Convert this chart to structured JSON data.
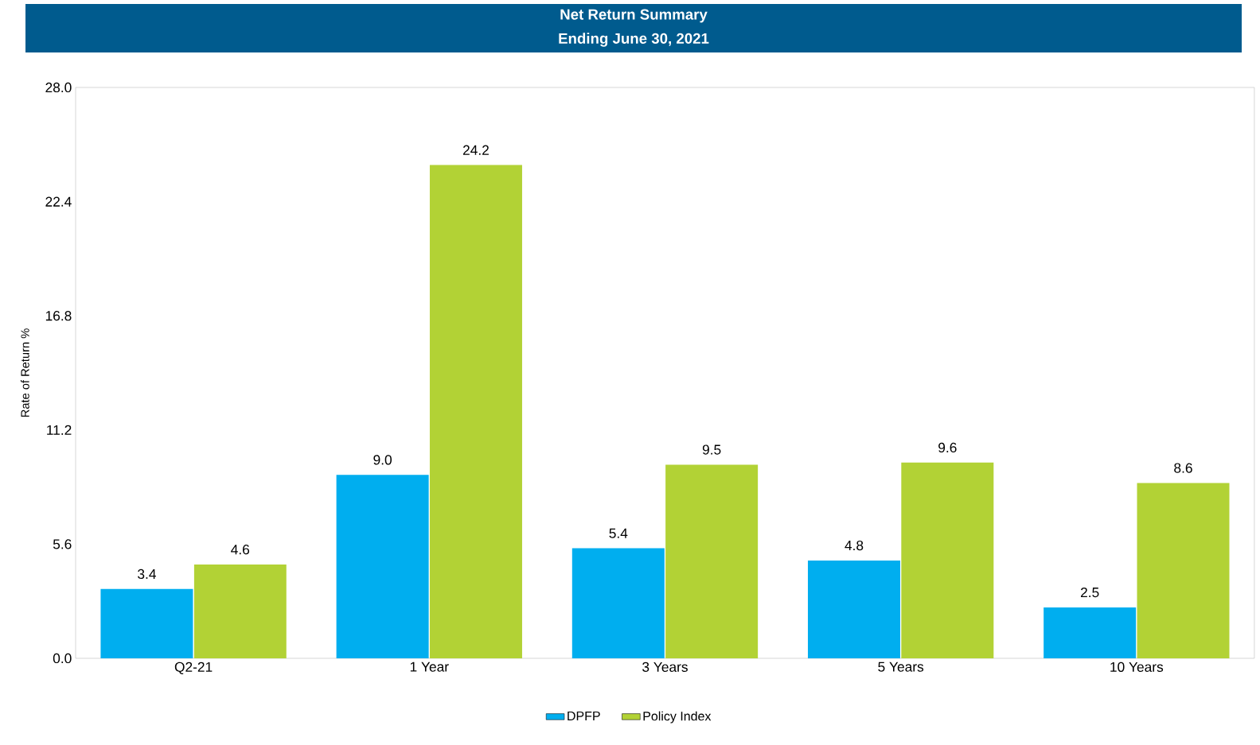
{
  "chart_data": {
    "type": "bar",
    "title": "Net Return Summary",
    "subtitle": "Ending June 30, 2021",
    "ylabel": "Rate of Return %",
    "categories": [
      "Q2-21",
      "1 Year",
      "3 Years",
      "5 Years",
      "10 Years"
    ],
    "series": [
      {
        "name": "DPFP",
        "color": "#00aeef",
        "values": [
          3.4,
          9.0,
          5.4,
          4.8,
          2.5
        ],
        "value_labels": [
          "3.4",
          "9.0",
          "5.4",
          "4.8",
          "2.5"
        ]
      },
      {
        "name": "Policy Index",
        "color": "#b2d235",
        "values": [
          4.6,
          24.2,
          9.5,
          9.6,
          8.6
        ],
        "value_labels": [
          "4.6",
          "24.2",
          "9.5",
          "9.6",
          "8.6"
        ]
      }
    ],
    "ylim": [
      0,
      28
    ],
    "yticks": [
      {
        "value": 0,
        "label": "0.0"
      },
      5.6,
      11.2,
      16.8,
      22.4,
      {
        "value": 28,
        "label": "28.0"
      }
    ],
    "grid": false,
    "legend": "bottom"
  }
}
